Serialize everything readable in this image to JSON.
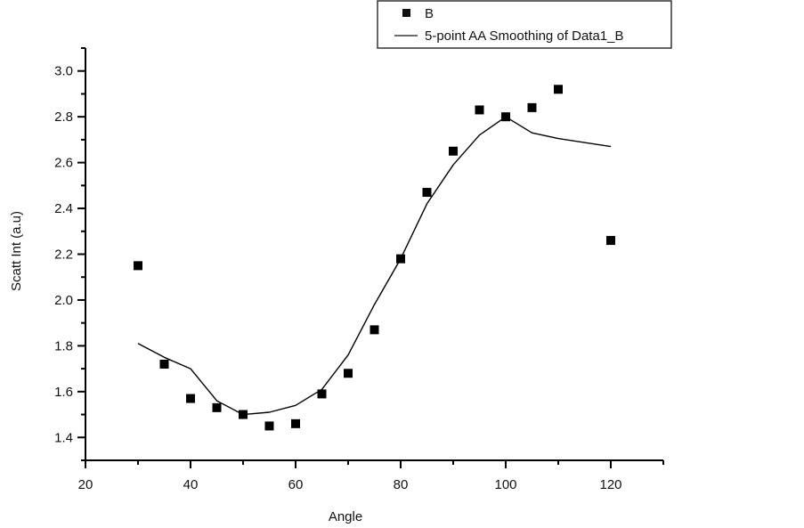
{
  "chart_data": {
    "type": "scatter",
    "title": "",
    "xlabel": "Angle",
    "ylabel": "Scatt Int (a.u)",
    "xlim": [
      20,
      130
    ],
    "ylim": [
      1.3,
      3.1
    ],
    "x_ticks": [
      20,
      40,
      60,
      80,
      100,
      120
    ],
    "x_tick_labels": [
      "20",
      "40",
      "60",
      "80",
      "100",
      "120"
    ],
    "x_minor_ticks": [
      30,
      50,
      70,
      90,
      110,
      130
    ],
    "y_ticks": [
      1.4,
      1.6,
      1.8,
      2.0,
      2.2,
      2.4,
      2.6,
      2.8,
      3.0
    ],
    "y_tick_labels": [
      "1.4",
      "1.6",
      "1.8",
      "2.0",
      "2.2",
      "2.4",
      "2.6",
      "2.8",
      "3.0"
    ],
    "y_minor_ticks": [
      1.3,
      1.5,
      1.7,
      1.9,
      2.1,
      2.3,
      2.5,
      2.7,
      2.9,
      3.1
    ],
    "grid": false,
    "legend_position": "top-right",
    "series": [
      {
        "name": "B",
        "kind": "scatter",
        "marker": "square",
        "color": "#000000",
        "x": [
          30,
          35,
          40,
          45,
          50,
          55,
          60,
          65,
          70,
          75,
          80,
          85,
          90,
          95,
          100,
          105,
          110,
          120
        ],
        "y": [
          2.15,
          1.72,
          1.57,
          1.53,
          1.5,
          1.45,
          1.46,
          1.59,
          1.68,
          1.87,
          2.18,
          2.47,
          2.65,
          2.83,
          2.8,
          2.84,
          2.92,
          2.26
        ]
      },
      {
        "name": "5-point AA Smoothing of Data1_B",
        "kind": "line",
        "color": "#000000",
        "x": [
          30,
          35,
          40,
          45,
          50,
          55,
          60,
          65,
          70,
          75,
          80,
          85,
          90,
          95,
          100,
          105,
          110,
          120
        ],
        "y": [
          1.81,
          1.75,
          1.7,
          1.56,
          1.5,
          1.51,
          1.54,
          1.61,
          1.76,
          1.98,
          2.18,
          2.42,
          2.59,
          2.72,
          2.8,
          2.73,
          2.705,
          2.67
        ]
      }
    ]
  }
}
